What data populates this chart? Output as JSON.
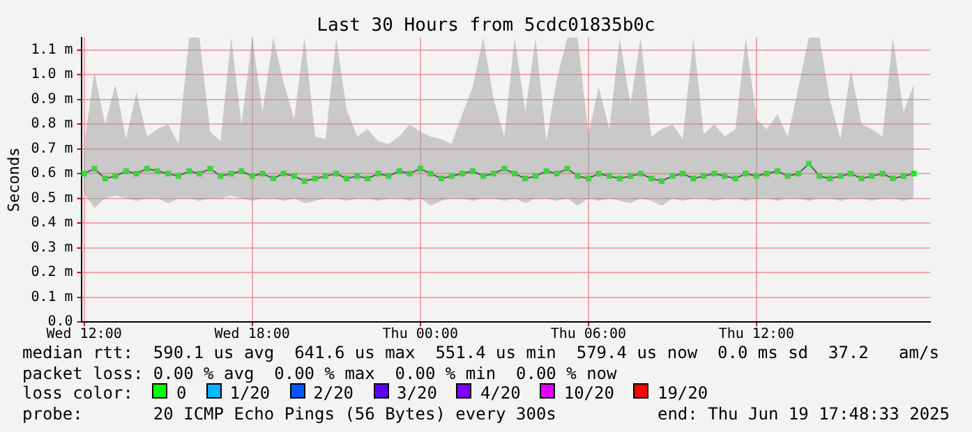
{
  "chart_data": {
    "type": "line",
    "title": "Last 30 Hours from 5cdc01835b0c",
    "ylabel": "Seconds",
    "legend_title": "loss color:",
    "legend": "bottom",
    "grid": true,
    "marker": "square",
    "xlim": [
      "2025-06-18T11:54",
      "2025-06-19T18:12"
    ],
    "xticks": [
      {
        "value": "2025-06-18T12:00",
        "label": "Wed 12:00"
      },
      {
        "value": "2025-06-18T18:00",
        "label": "Wed 18:00"
      },
      {
        "value": "2025-06-19T00:00",
        "label": "Thu 00:00"
      },
      {
        "value": "2025-06-19T06:00",
        "label": "Thu 06:00"
      },
      {
        "value": "2025-06-19T12:00",
        "label": "Thu 12:00"
      }
    ],
    "ylim": [
      0,
      1.15
    ],
    "yticks": [
      {
        "value": 0,
        "label": "0.0"
      },
      {
        "value": 0.1,
        "label": "0.1 m"
      },
      {
        "value": 0.2,
        "label": "0.2 m"
      },
      {
        "value": 0.3,
        "label": "0.3 m"
      },
      {
        "value": 0.4,
        "label": "0.4 m"
      },
      {
        "value": 0.5,
        "label": "0.5 m"
      },
      {
        "value": 0.6,
        "label": "0.6 m"
      },
      {
        "value": 0.7,
        "label": "0.7 m"
      },
      {
        "value": 0.8,
        "label": "0.8 m"
      },
      {
        "value": 0.9,
        "label": "0.9 m"
      },
      {
        "value": 1.0,
        "label": "1.0 m"
      },
      {
        "value": 1.1,
        "label": "1.1 m"
      }
    ],
    "x": [
      "2025-06-18T12:00",
      "2025-06-18T12:22",
      "2025-06-18T12:45",
      "2025-06-18T13:07",
      "2025-06-18T13:30",
      "2025-06-18T13:52",
      "2025-06-18T14:15",
      "2025-06-18T14:37",
      "2025-06-18T15:00",
      "2025-06-18T15:22",
      "2025-06-18T15:45",
      "2025-06-18T16:07",
      "2025-06-18T16:30",
      "2025-06-18T16:52",
      "2025-06-18T17:15",
      "2025-06-18T17:37",
      "2025-06-18T18:00",
      "2025-06-18T18:22",
      "2025-06-18T18:45",
      "2025-06-18T19:07",
      "2025-06-18T19:30",
      "2025-06-18T19:52",
      "2025-06-18T20:15",
      "2025-06-18T20:37",
      "2025-06-18T21:00",
      "2025-06-18T21:22",
      "2025-06-18T21:45",
      "2025-06-18T22:07",
      "2025-06-18T22:30",
      "2025-06-18T22:52",
      "2025-06-18T23:15",
      "2025-06-18T23:37",
      "2025-06-19T00:00",
      "2025-06-19T00:22",
      "2025-06-19T00:45",
      "2025-06-19T01:07",
      "2025-06-19T01:30",
      "2025-06-19T01:52",
      "2025-06-19T02:15",
      "2025-06-19T02:37",
      "2025-06-19T03:00",
      "2025-06-19T03:22",
      "2025-06-19T03:45",
      "2025-06-19T04:07",
      "2025-06-19T04:30",
      "2025-06-19T04:52",
      "2025-06-19T05:15",
      "2025-06-19T05:37",
      "2025-06-19T06:00",
      "2025-06-19T06:22",
      "2025-06-19T06:45",
      "2025-06-19T07:07",
      "2025-06-19T07:30",
      "2025-06-19T07:52",
      "2025-06-19T08:15",
      "2025-06-19T08:37",
      "2025-06-19T09:00",
      "2025-06-19T09:22",
      "2025-06-19T09:45",
      "2025-06-19T10:07",
      "2025-06-19T10:30",
      "2025-06-19T10:52",
      "2025-06-19T11:15",
      "2025-06-19T11:37",
      "2025-06-19T12:00",
      "2025-06-19T12:22",
      "2025-06-19T12:45",
      "2025-06-19T13:07",
      "2025-06-19T13:30",
      "2025-06-19T13:52",
      "2025-06-19T14:15",
      "2025-06-19T14:37",
      "2025-06-19T15:00",
      "2025-06-19T15:22",
      "2025-06-19T15:45",
      "2025-06-19T16:07",
      "2025-06-19T16:30",
      "2025-06-19T16:52",
      "2025-06-19T17:15",
      "2025-06-19T17:37"
    ],
    "series": [
      {
        "name": "0",
        "color": "#00ff00",
        "values": [
          0.6,
          0.62,
          0.58,
          0.59,
          0.61,
          0.6,
          0.62,
          0.61,
          0.6,
          0.59,
          0.61,
          0.6,
          0.62,
          0.59,
          0.6,
          0.61,
          0.59,
          0.6,
          0.58,
          0.6,
          0.59,
          0.57,
          0.58,
          0.59,
          0.6,
          0.58,
          0.59,
          0.58,
          0.6,
          0.59,
          0.61,
          0.6,
          0.62,
          0.6,
          0.58,
          0.59,
          0.6,
          0.61,
          0.59,
          0.6,
          0.62,
          0.6,
          0.58,
          0.59,
          0.61,
          0.6,
          0.62,
          0.59,
          0.58,
          0.6,
          0.59,
          0.58,
          0.59,
          0.6,
          0.58,
          0.57,
          0.59,
          0.6,
          0.58,
          0.59,
          0.6,
          0.59,
          0.58,
          0.6,
          0.59,
          0.6,
          0.61,
          0.59,
          0.6,
          0.64,
          0.59,
          0.58,
          0.59,
          0.6,
          0.58,
          0.59,
          0.6,
          0.58,
          0.59,
          0.6
        ],
        "lower": [
          0.52,
          0.46,
          0.5,
          0.51,
          0.5,
          0.49,
          0.5,
          0.5,
          0.48,
          0.5,
          0.5,
          0.49,
          0.5,
          0.5,
          0.51,
          0.5,
          0.49,
          0.5,
          0.5,
          0.49,
          0.5,
          0.48,
          0.49,
          0.5,
          0.5,
          0.49,
          0.5,
          0.5,
          0.49,
          0.5,
          0.5,
          0.49,
          0.5,
          0.47,
          0.49,
          0.5,
          0.5,
          0.49,
          0.5,
          0.5,
          0.49,
          0.5,
          0.48,
          0.5,
          0.5,
          0.49,
          0.5,
          0.47,
          0.5,
          0.49,
          0.5,
          0.49,
          0.48,
          0.5,
          0.49,
          0.47,
          0.5,
          0.49,
          0.5,
          0.5,
          0.49,
          0.5,
          0.5,
          0.49,
          0.5,
          0.5,
          0.49,
          0.5,
          0.5,
          0.49,
          0.5,
          0.5,
          0.49,
          0.5,
          0.5,
          0.49,
          0.5,
          0.5,
          0.49,
          0.5
        ],
        "upper": [
          0.72,
          1.01,
          0.8,
          0.96,
          0.74,
          0.93,
          0.75,
          0.78,
          0.8,
          0.72,
          1.15,
          1.15,
          0.77,
          0.73,
          1.15,
          0.8,
          1.15,
          0.85,
          1.15,
          0.97,
          0.82,
          1.15,
          0.75,
          0.74,
          1.15,
          0.86,
          0.75,
          0.78,
          0.73,
          0.72,
          0.75,
          0.8,
          0.77,
          0.75,
          0.74,
          0.72,
          0.84,
          0.95,
          1.15,
          0.9,
          0.75,
          1.15,
          0.85,
          1.15,
          0.73,
          0.98,
          1.15,
          1.15,
          0.76,
          0.95,
          0.78,
          1.15,
          0.88,
          1.15,
          0.75,
          0.78,
          0.8,
          0.74,
          1.15,
          0.76,
          0.8,
          0.75,
          0.78,
          1.15,
          0.82,
          0.78,
          0.84,
          0.75,
          0.95,
          1.15,
          1.15,
          0.9,
          0.74,
          1.02,
          0.8,
          0.78,
          0.75,
          1.15,
          0.85,
          0.96
        ]
      },
      {
        "name": "1/20",
        "color": "#00b8ff",
        "values": [
          null,
          null,
          null,
          null,
          null,
          null,
          null,
          null,
          null,
          null,
          null,
          null,
          null,
          null,
          null,
          null,
          null,
          null,
          null,
          null,
          null,
          null,
          null,
          null,
          null,
          null,
          null,
          null,
          null,
          null,
          null,
          null,
          null,
          null,
          null,
          null,
          null,
          null,
          null,
          null,
          null,
          null,
          null,
          null,
          null,
          null,
          null,
          null,
          null,
          null,
          null,
          null,
          null,
          null,
          null,
          null,
          null,
          null,
          null,
          null,
          null,
          null,
          null,
          null,
          null,
          null,
          null,
          null,
          null,
          null,
          null,
          null,
          null,
          null,
          null,
          null,
          null,
          null,
          null,
          null
        ]
      },
      {
        "name": "2/20",
        "color": "#0059ff",
        "values": [
          null,
          null,
          null,
          null,
          null,
          null,
          null,
          null,
          null,
          null,
          null,
          null,
          null,
          null,
          null,
          null,
          null,
          null,
          null,
          null,
          null,
          null,
          null,
          null,
          null,
          null,
          null,
          null,
          null,
          null,
          null,
          null,
          null,
          null,
          null,
          null,
          null,
          null,
          null,
          null,
          null,
          null,
          null,
          null,
          null,
          null,
          null,
          null,
          null,
          null,
          null,
          null,
          null,
          null,
          null,
          null,
          null,
          null,
          null,
          null,
          null,
          null,
          null,
          null,
          null,
          null,
          null,
          null,
          null,
          null,
          null,
          null,
          null,
          null,
          null,
          null,
          null,
          null,
          null,
          null
        ]
      },
      {
        "name": "3/20",
        "color": "#5e00ff",
        "values": [
          null,
          null,
          null,
          null,
          null,
          null,
          null,
          null,
          null,
          null,
          null,
          null,
          null,
          null,
          null,
          null,
          null,
          null,
          null,
          null,
          null,
          null,
          null,
          null,
          null,
          null,
          null,
          null,
          null,
          null,
          null,
          null,
          null,
          null,
          null,
          null,
          null,
          null,
          null,
          null,
          null,
          null,
          null,
          null,
          null,
          null,
          null,
          null,
          null,
          null,
          null,
          null,
          null,
          null,
          null,
          null,
          null,
          null,
          null,
          null,
          null,
          null,
          null,
          null,
          null,
          null,
          null,
          null,
          null,
          null,
          null,
          null,
          null,
          null,
          null,
          null,
          null,
          null,
          null,
          null
        ]
      },
      {
        "name": "4/20",
        "color": "#7e00ff",
        "values": [
          null,
          null,
          null,
          null,
          null,
          null,
          null,
          null,
          null,
          null,
          null,
          null,
          null,
          null,
          null,
          null,
          null,
          null,
          null,
          null,
          null,
          null,
          null,
          null,
          null,
          null,
          null,
          null,
          null,
          null,
          null,
          null,
          null,
          null,
          null,
          null,
          null,
          null,
          null,
          null,
          null,
          null,
          null,
          null,
          null,
          null,
          null,
          null,
          null,
          null,
          null,
          null,
          null,
          null,
          null,
          null,
          null,
          null,
          null,
          null,
          null,
          null,
          null,
          null,
          null,
          null,
          null,
          null,
          null,
          null,
          null,
          null,
          null,
          null,
          null,
          null,
          null,
          null,
          null,
          null
        ]
      },
      {
        "name": "10/20",
        "color": "#dd00ff",
        "values": [
          null,
          null,
          null,
          null,
          null,
          null,
          null,
          null,
          null,
          null,
          null,
          null,
          null,
          null,
          null,
          null,
          null,
          null,
          null,
          null,
          null,
          null,
          null,
          null,
          null,
          null,
          null,
          null,
          null,
          null,
          null,
          null,
          null,
          null,
          null,
          null,
          null,
          null,
          null,
          null,
          null,
          null,
          null,
          null,
          null,
          null,
          null,
          null,
          null,
          null,
          null,
          null,
          null,
          null,
          null,
          null,
          null,
          null,
          null,
          null,
          null,
          null,
          null,
          null,
          null,
          null,
          null,
          null,
          null,
          null,
          null,
          null,
          null,
          null,
          null,
          null,
          null,
          null,
          null,
          null
        ]
      },
      {
        "name": "19/20",
        "color": "#ff0000",
        "values": [
          null,
          null,
          null,
          null,
          null,
          null,
          null,
          null,
          null,
          null,
          null,
          null,
          null,
          null,
          null,
          null,
          null,
          null,
          null,
          null,
          null,
          null,
          null,
          null,
          null,
          null,
          null,
          null,
          null,
          null,
          null,
          null,
          null,
          null,
          null,
          null,
          null,
          null,
          null,
          null,
          null,
          null,
          null,
          null,
          null,
          null,
          null,
          null,
          null,
          null,
          null,
          null,
          null,
          null,
          null,
          null,
          null,
          null,
          null,
          null,
          null,
          null,
          null,
          null,
          null,
          null,
          null,
          null,
          null,
          null,
          null,
          null,
          null,
          null,
          null,
          null,
          null,
          null,
          null,
          null
        ]
      }
    ],
    "annotations": [
      "median rtt:  590.1 us avg  641.6 us max  551.4 us min  579.4 us now  0.0 ms sd  37.2   am/s",
      "packet loss: 0.00 % avg  0.00 % max  0.00 % min  0.00 % now",
      "probe:       20 ICMP Echo Pings (56 Bytes) every 300s",
      "end: Thu Jun 19 17:48:33 2025"
    ]
  }
}
